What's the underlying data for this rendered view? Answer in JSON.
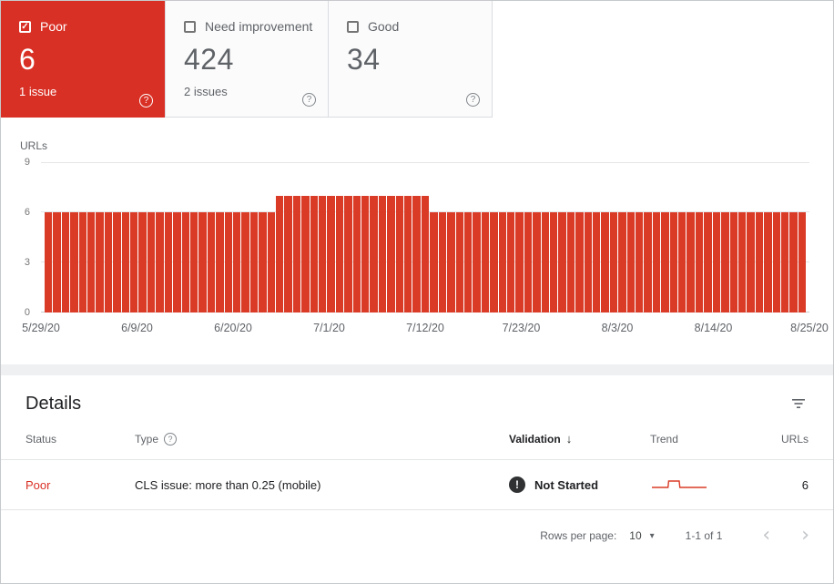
{
  "tabs": {
    "poor": {
      "label": "Poor",
      "count": "6",
      "issues": "1 issue"
    },
    "need_improvement": {
      "label": "Need improvement",
      "count": "424",
      "issues": "2 issues"
    },
    "good": {
      "label": "Good",
      "count": "34",
      "issues": ""
    }
  },
  "chart_data": {
    "type": "bar",
    "title": "",
    "ylabel": "URLs",
    "ylim": [
      0,
      9
    ],
    "yticks": [
      0,
      3,
      6,
      9
    ],
    "xtick_labels": [
      "5/29/20",
      "6/9/20",
      "6/20/20",
      "7/1/20",
      "7/12/20",
      "7/23/20",
      "8/3/20",
      "8/14/20",
      "8/25/20"
    ],
    "xtick_indices": [
      0,
      11,
      22,
      33,
      44,
      55,
      66,
      77,
      88
    ],
    "bar_color": "#da3b27",
    "values": [
      6,
      6,
      6,
      6,
      6,
      6,
      6,
      6,
      6,
      6,
      6,
      6,
      6,
      6,
      6,
      6,
      6,
      6,
      6,
      6,
      6,
      6,
      6,
      6,
      6,
      6,
      6,
      7,
      7,
      7,
      7,
      7,
      7,
      7,
      7,
      7,
      7,
      7,
      7,
      7,
      7,
      7,
      7,
      7,
      7,
      6,
      6,
      6,
      6,
      6,
      6,
      6,
      6,
      6,
      6,
      6,
      6,
      6,
      6,
      6,
      6,
      6,
      6,
      6,
      6,
      6,
      6,
      6,
      6,
      6,
      6,
      6,
      6,
      6,
      6,
      6,
      6,
      6,
      6,
      6,
      6,
      6,
      6,
      6,
      6,
      6,
      6,
      6,
      6
    ]
  },
  "details": {
    "title": "Details",
    "columns": {
      "status": "Status",
      "type": "Type",
      "validation": "Validation",
      "trend": "Trend",
      "urls": "URLs"
    },
    "rows": [
      {
        "status": "Poor",
        "type": "CLS issue: more than 0.25 (mobile)",
        "validation": "Not Started",
        "urls": "6"
      }
    ],
    "footer": {
      "rows_per_page_label": "Rows per page:",
      "rows_per_page_value": "10",
      "range": "1-1 of 1"
    }
  },
  "icons": {
    "help": "?",
    "check": "✓",
    "exclamation": "!",
    "sort_down": "↓",
    "dropdown": "▾",
    "chevron_left": "‹",
    "chevron_right": "›"
  },
  "colors": {
    "poor_red": "#d93025",
    "bar_red": "#da3b27"
  }
}
